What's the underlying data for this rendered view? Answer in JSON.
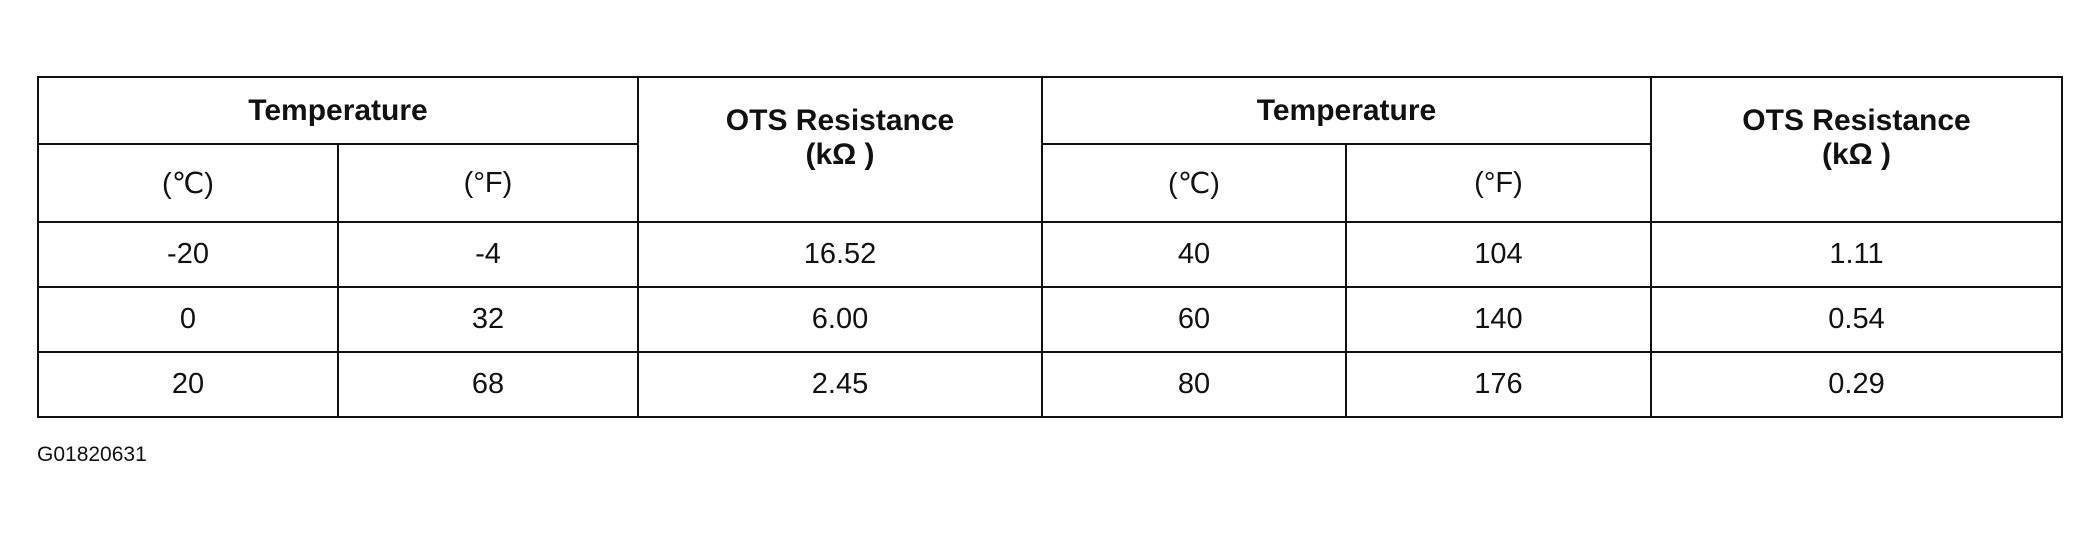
{
  "table": {
    "groups": [
      {
        "label": "Temperature",
        "units": [
          "(℃)",
          "(°F)"
        ]
      },
      {
        "label": "OTS Resistance",
        "unit": "(kΩ )"
      },
      {
        "label": "Temperature",
        "units": [
          "(℃)",
          "(°F)"
        ]
      },
      {
        "label": "OTS Resistance",
        "unit": "(kΩ )"
      }
    ],
    "rows": [
      [
        "-20",
        "-4",
        "16.52",
        "40",
        "104",
        "1.11"
      ],
      [
        "0",
        "32",
        "6.00",
        "60",
        "140",
        "0.54"
      ],
      [
        "20",
        "68",
        "2.45",
        "80",
        "176",
        "0.29"
      ]
    ]
  },
  "caption": "G01820631"
}
